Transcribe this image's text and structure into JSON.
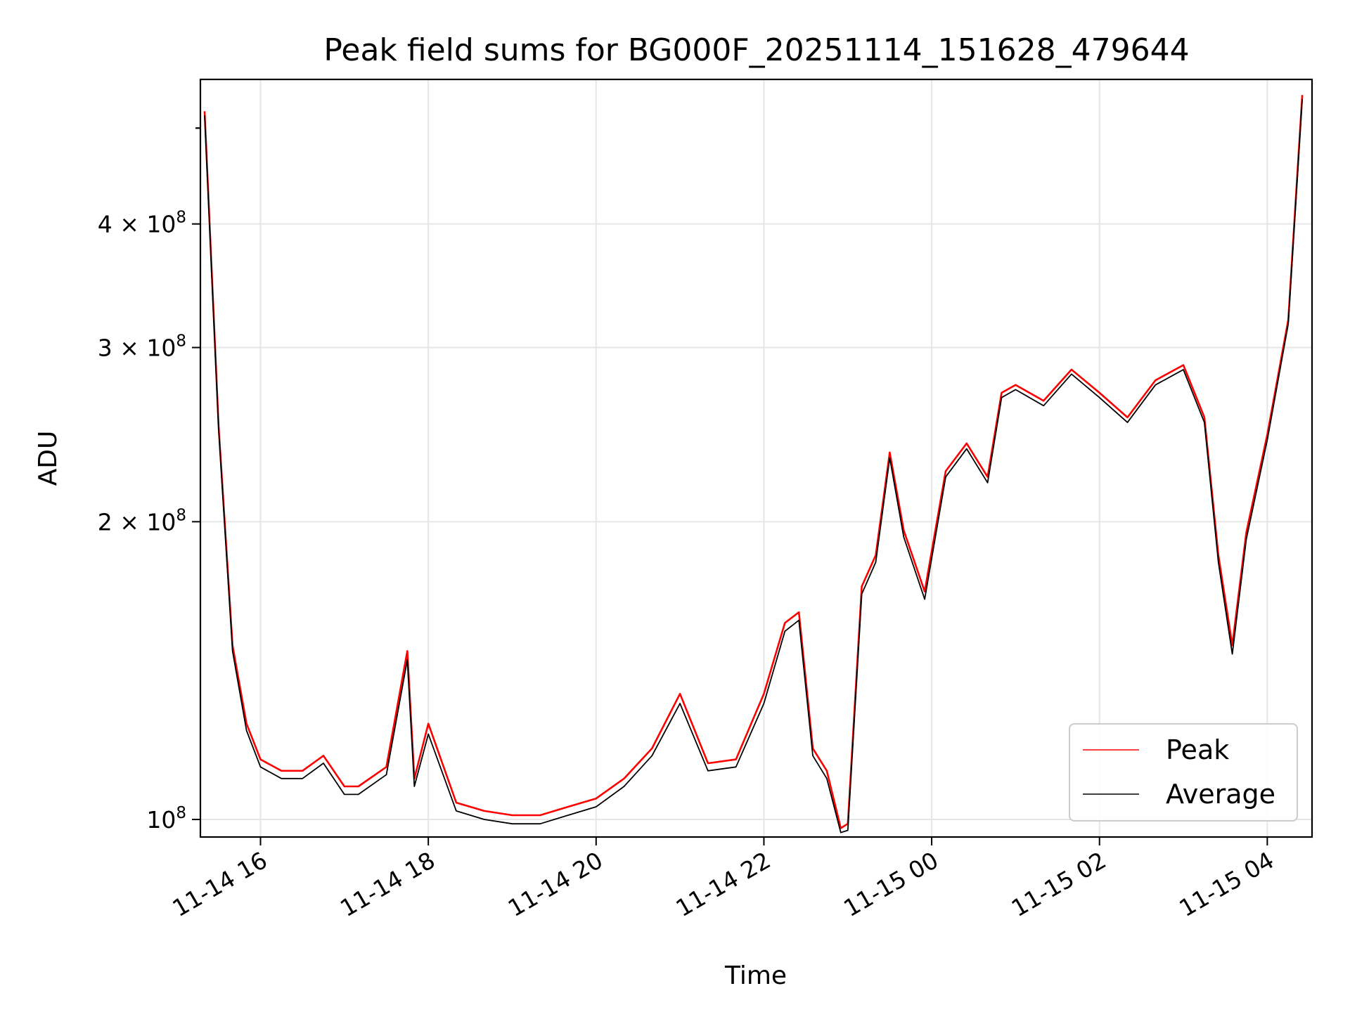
{
  "chart_data": {
    "type": "line",
    "title": "Peak field sums for BG000F_20251114_151628_479644",
    "xlabel": "Time",
    "ylabel": "ADU",
    "y_scale": "log",
    "ylim": [
      96000000,
      560000000
    ],
    "xlim": [
      "2025-11-14 15:17",
      "2025-11-15 04:32"
    ],
    "grid": true,
    "legend_placement": "lower-right",
    "x_ticks": [
      {
        "value": "2025-11-14 16:00",
        "label": "11-14 16"
      },
      {
        "value": "2025-11-14 18:00",
        "label": "11-14 18"
      },
      {
        "value": "2025-11-14 20:00",
        "label": "11-14 20"
      },
      {
        "value": "2025-11-14 22:00",
        "label": "11-14 22"
      },
      {
        "value": "2025-11-15 00:00",
        "label": "11-15 00"
      },
      {
        "value": "2025-11-15 02:00",
        "label": "11-15 02"
      },
      {
        "value": "2025-11-15 04:00",
        "label": "11-15 04"
      }
    ],
    "y_ticks": [
      {
        "value": 100000000,
        "mantissa": "",
        "exponent": "8",
        "base": "10"
      },
      {
        "value": 200000000,
        "mantissa": "2",
        "exponent": "8",
        "base": "10"
      },
      {
        "value": 300000000,
        "mantissa": "3",
        "exponent": "8",
        "base": "10"
      },
      {
        "value": 400000000,
        "mantissa": "4",
        "exponent": "8",
        "base": "10"
      }
    ],
    "series": [
      {
        "name": "Peak",
        "color": "#ff0000",
        "x": [
          "2025-11-14 15:20",
          "2025-11-14 15:30",
          "2025-11-14 15:40",
          "2025-11-14 15:50",
          "2025-11-14 16:00",
          "2025-11-14 16:15",
          "2025-11-14 16:30",
          "2025-11-14 16:45",
          "2025-11-14 17:00",
          "2025-11-14 17:10",
          "2025-11-14 17:30",
          "2025-11-14 17:45",
          "2025-11-14 17:50",
          "2025-11-14 18:00",
          "2025-11-14 18:20",
          "2025-11-14 18:40",
          "2025-11-14 19:00",
          "2025-11-14 19:20",
          "2025-11-14 19:40",
          "2025-11-14 20:00",
          "2025-11-14 20:20",
          "2025-11-14 20:40",
          "2025-11-14 21:00",
          "2025-11-14 21:20",
          "2025-11-14 21:40",
          "2025-11-14 22:00",
          "2025-11-14 22:15",
          "2025-11-14 22:25",
          "2025-11-14 22:35",
          "2025-11-14 22:45",
          "2025-11-14 22:55",
          "2025-11-14 23:00",
          "2025-11-14 23:10",
          "2025-11-14 23:20",
          "2025-11-14 23:30",
          "2025-11-14 23:40",
          "2025-11-14 23:55",
          "2025-11-15 00:10",
          "2025-11-15 00:25",
          "2025-11-15 00:40",
          "2025-11-15 00:50",
          "2025-11-15 01:00",
          "2025-11-15 01:20",
          "2025-11-15 01:40",
          "2025-11-15 02:00",
          "2025-11-15 02:20",
          "2025-11-15 02:40",
          "2025-11-15 03:00",
          "2025-11-15 03:15",
          "2025-11-15 03:25",
          "2025-11-15 03:35",
          "2025-11-15 03:45",
          "2025-11-15 04:00",
          "2025-11-15 04:15",
          "2025-11-15 04:25"
        ],
        "values": [
          520000000,
          250000000,
          150000000,
          125000000,
          115000000,
          112000000,
          112000000,
          116000000,
          108000000,
          108000000,
          113000000,
          148000000,
          110000000,
          125000000,
          104000000,
          102000000,
          101000000,
          101000000,
          103000000,
          105000000,
          110000000,
          118000000,
          134000000,
          114000000,
          115000000,
          134000000,
          158000000,
          162000000,
          118000000,
          112000000,
          98000000,
          99000000,
          172000000,
          185000000,
          235000000,
          196000000,
          170000000,
          225000000,
          240000000,
          222000000,
          270000000,
          275000000,
          265000000,
          285000000,
          270000000,
          255000000,
          278000000,
          288000000,
          255000000,
          185000000,
          150000000,
          195000000,
          245000000,
          320000000,
          540000000
        ]
      },
      {
        "name": "Average",
        "color": "#000000",
        "x": [
          "2025-11-14 15:20",
          "2025-11-14 15:30",
          "2025-11-14 15:40",
          "2025-11-14 15:50",
          "2025-11-14 16:00",
          "2025-11-14 16:15",
          "2025-11-14 16:30",
          "2025-11-14 16:45",
          "2025-11-14 17:00",
          "2025-11-14 17:10",
          "2025-11-14 17:30",
          "2025-11-14 17:45",
          "2025-11-14 17:50",
          "2025-11-14 18:00",
          "2025-11-14 18:20",
          "2025-11-14 18:40",
          "2025-11-14 19:00",
          "2025-11-14 19:20",
          "2025-11-14 19:40",
          "2025-11-14 20:00",
          "2025-11-14 20:20",
          "2025-11-14 20:40",
          "2025-11-14 21:00",
          "2025-11-14 21:20",
          "2025-11-14 21:40",
          "2025-11-14 22:00",
          "2025-11-14 22:15",
          "2025-11-14 22:25",
          "2025-11-14 22:35",
          "2025-11-14 22:45",
          "2025-11-14 22:55",
          "2025-11-14 23:00",
          "2025-11-14 23:10",
          "2025-11-14 23:20",
          "2025-11-14 23:30",
          "2025-11-14 23:40",
          "2025-11-14 23:55",
          "2025-11-15 00:10",
          "2025-11-15 00:25",
          "2025-11-15 00:40",
          "2025-11-15 00:50",
          "2025-11-15 01:00",
          "2025-11-15 01:20",
          "2025-11-15 01:40",
          "2025-11-15 02:00",
          "2025-11-15 02:20",
          "2025-11-15 02:40",
          "2025-11-15 03:00",
          "2025-11-15 03:15",
          "2025-11-15 03:25",
          "2025-11-15 03:35",
          "2025-11-15 03:45",
          "2025-11-15 04:00",
          "2025-11-15 04:15",
          "2025-11-15 04:25"
        ],
        "values": [
          515000000,
          248000000,
          148000000,
          123000000,
          113000000,
          110000000,
          110000000,
          114000000,
          106000000,
          106000000,
          111000000,
          145000000,
          108000000,
          122000000,
          102000000,
          100000000,
          99000000,
          99000000,
          101000000,
          103000000,
          108000000,
          116000000,
          131000000,
          112000000,
          113000000,
          131000000,
          155000000,
          159000000,
          116000000,
          110000000,
          97000000,
          97500000,
          169000000,
          182000000,
          232000000,
          193000000,
          167000000,
          222000000,
          237000000,
          219000000,
          267000000,
          272000000,
          262000000,
          282000000,
          267000000,
          252000000,
          275000000,
          285000000,
          252000000,
          182000000,
          147000000,
          192000000,
          242000000,
          317000000,
          535000000
        ]
      }
    ]
  }
}
